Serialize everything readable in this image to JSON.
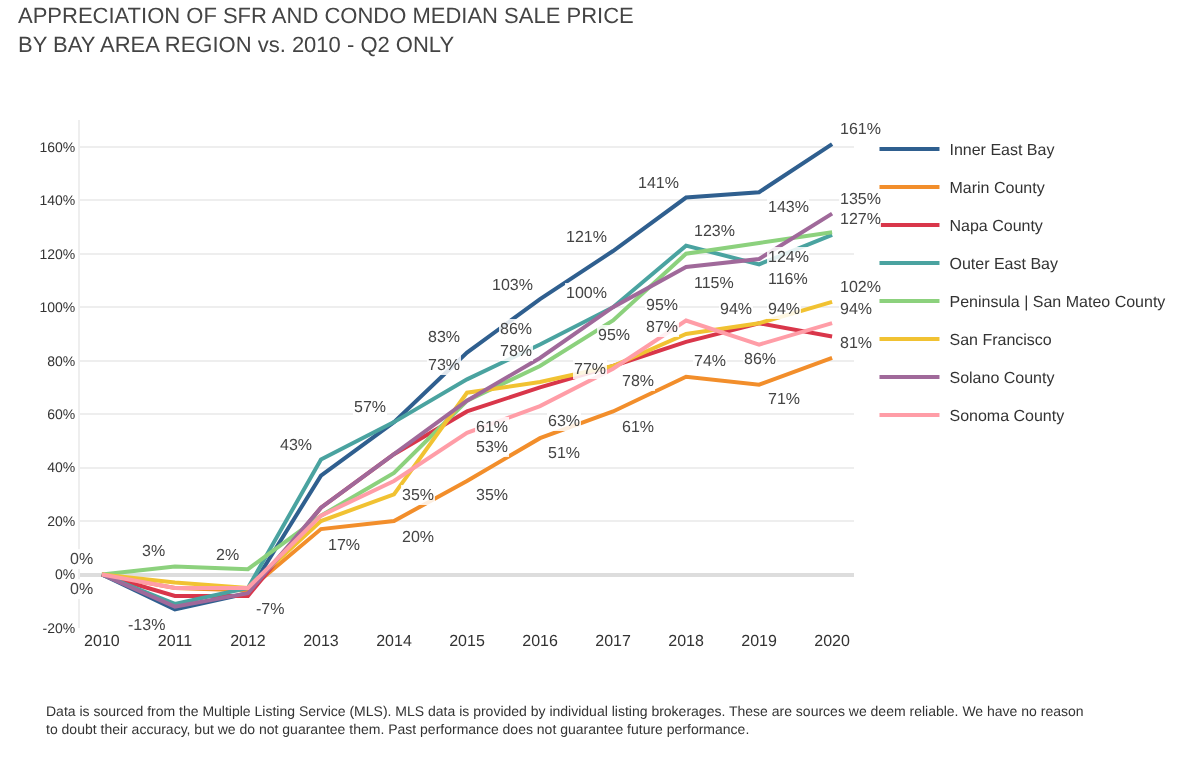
{
  "chart_data": {
    "type": "line",
    "title": "APPRECIATION OF SFR AND CONDO MEDIAN SALE PRICE\nBY BAY AREA REGION vs. 2010 - Q2 ONLY",
    "categories": [
      "2010",
      "2011",
      "2012",
      "2013",
      "2014",
      "2015",
      "2016",
      "2017",
      "2018",
      "2019",
      "2020"
    ],
    "ylim": [
      -20,
      170
    ],
    "yticks": [
      {
        "value": -20,
        "label": "-20%"
      },
      {
        "value": 0,
        "label": "0%"
      },
      {
        "value": 20,
        "label": "20%"
      },
      {
        "value": 40,
        "label": "40%"
      },
      {
        "value": 60,
        "label": "60%"
      },
      {
        "value": 80,
        "label": "80%"
      },
      {
        "value": 100,
        "label": "100%"
      },
      {
        "value": 120,
        "label": "120%"
      },
      {
        "value": 140,
        "label": "140%"
      },
      {
        "value": 160,
        "label": "160%"
      }
    ],
    "grid": "y",
    "legend": "top right",
    "marker": "none",
    "line_style": "solid",
    "series": [
      {
        "name": "Inner East Bay",
        "color": "#2f5f8f",
        "values": [
          0,
          -13,
          -7,
          37,
          57,
          83,
          103,
          121,
          141,
          143,
          161
        ],
        "value_labels": [
          "0%",
          "-13%",
          null,
          null,
          null,
          "83%",
          "103%",
          "121%",
          "141%",
          "143%",
          "161%"
        ]
      },
      {
        "name": "Marin County",
        "color": "#f28e2b",
        "values": [
          0,
          -5,
          -6,
          17,
          20,
          35,
          51,
          61,
          74,
          71,
          81
        ],
        "value_labels": [
          null,
          null,
          null,
          "17%",
          "20%",
          "35%",
          "51%",
          "61%",
          "74%",
          "71%",
          "81%"
        ]
      },
      {
        "name": "Napa County",
        "color": "#d9364a",
        "values": [
          0,
          -8,
          -8,
          25,
          45,
          61,
          70,
          78,
          87,
          94,
          89
        ],
        "value_labels": [
          null,
          null,
          null,
          null,
          null,
          "61%",
          null,
          "78%",
          "87%",
          "94%",
          null
        ]
      },
      {
        "name": "Outer East Bay",
        "color": "#4aa3a0",
        "values": [
          0,
          -11,
          -5,
          43,
          57,
          73,
          86,
          100,
          123,
          116,
          127
        ],
        "value_labels": [
          null,
          null,
          null,
          "43%",
          "57%",
          "73%",
          "86%",
          "100%",
          "123%",
          "116%",
          "127%"
        ]
      },
      {
        "name": "Peninsula | San Mateo County",
        "color": "#8cd17d",
        "values": [
          0,
          3,
          2,
          22,
          38,
          65,
          78,
          95,
          120,
          124,
          128
        ],
        "value_labels": [
          "0%",
          "3%",
          "2%",
          null,
          null,
          null,
          "78%",
          "95%",
          null,
          "124%",
          null
        ]
      },
      {
        "name": "San Francisco",
        "color": "#f1c232",
        "values": [
          0,
          -3,
          -5,
          20,
          30,
          68,
          72,
          78,
          90,
          94,
          102
        ],
        "value_labels": [
          null,
          null,
          null,
          null,
          null,
          null,
          null,
          null,
          null,
          "94%",
          "102%"
        ]
      },
      {
        "name": "Solano County",
        "color": "#a0699a",
        "values": [
          0,
          -12,
          -7,
          25,
          45,
          65,
          81,
          100,
          115,
          118,
          135
        ],
        "value_labels": [
          null,
          null,
          "-7%",
          null,
          null,
          null,
          null,
          null,
          "115%",
          null,
          "135%"
        ]
      },
      {
        "name": "Sonoma County",
        "color": "#ff9da7",
        "values": [
          0,
          -5,
          -5,
          22,
          35,
          53,
          63,
          77,
          95,
          86,
          94
        ],
        "value_labels": [
          null,
          null,
          null,
          null,
          "35%",
          "53%",
          "63%",
          "77%",
          "95%",
          "86%",
          "94%"
        ]
      }
    ],
    "annotations": [
      "Data is sourced from the Multiple Listing Service (MLS). MLS data is provided by individual listing brokerages. These are sources we deem reliable. We have no reason\nto doubt their accuracy, but we do not guarantee them. Past performance does not guarantee future performance."
    ]
  }
}
